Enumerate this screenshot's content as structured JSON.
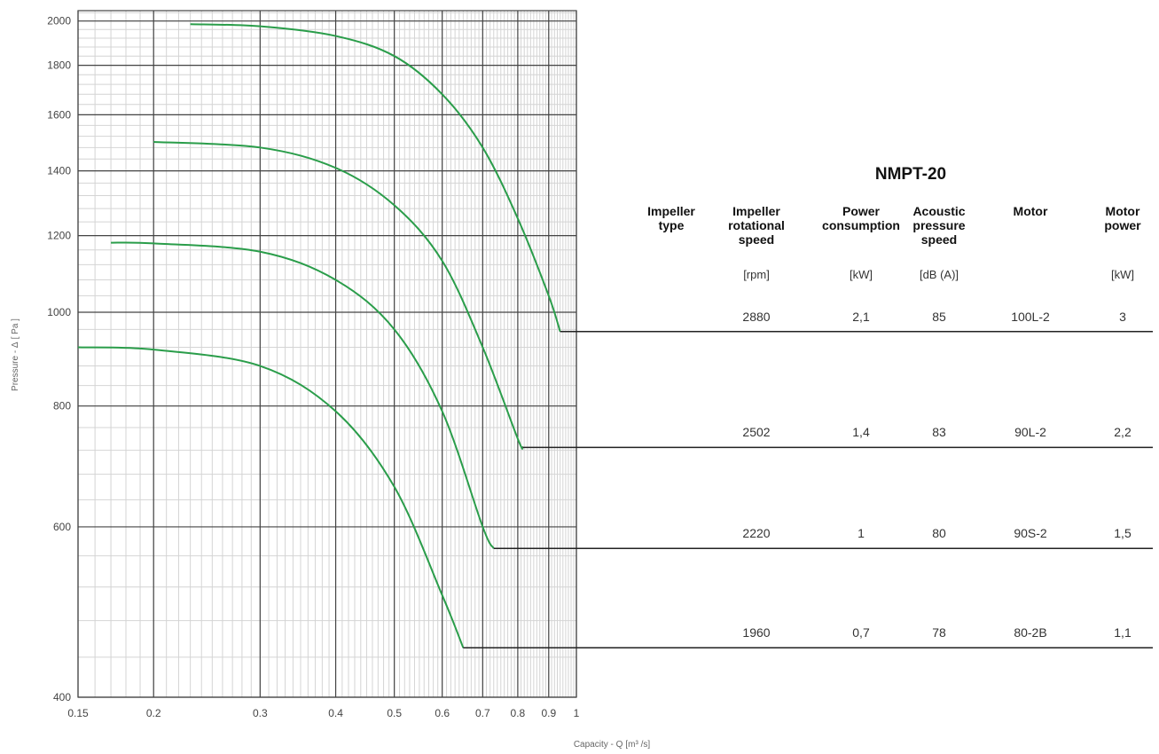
{
  "chart_data": {
    "type": "line",
    "title": "NMPT-20",
    "xlabel": "Capacity - Q",
    "xlabel_unit": "[m³ /s]",
    "ylabel": "Pressure - Δ",
    "ylabel_unit": "[ Pa ]",
    "xscale": "log",
    "yscale": "log",
    "xlim": [
      0.15,
      1
    ],
    "ylim": [
      400,
      2050
    ],
    "xticks": [
      "0.15",
      "0.2",
      "0.3",
      "0.4",
      "0.5",
      "0.6",
      "0.7",
      "0.8",
      "0.9",
      "1"
    ],
    "yticks": [
      "400",
      "600",
      "800",
      "1000",
      "1200",
      "1400",
      "1600",
      "1800",
      "2000"
    ],
    "grid": true,
    "line_color": "#2a9d4a",
    "series": [
      {
        "name": "2880",
        "x": [
          0.23,
          0.3,
          0.4,
          0.5,
          0.6,
          0.7,
          0.8,
          0.9,
          0.94
        ],
        "y": [
          1985,
          1975,
          1930,
          1840,
          1680,
          1480,
          1250,
          1040,
          955
        ]
      },
      {
        "name": "2502",
        "x": [
          0.2,
          0.3,
          0.4,
          0.5,
          0.6,
          0.7,
          0.8,
          0.815
        ],
        "y": [
          1500,
          1480,
          1410,
          1290,
          1130,
          920,
          740,
          725
        ]
      },
      {
        "name": "2220",
        "x": [
          0.17,
          0.2,
          0.3,
          0.4,
          0.5,
          0.6,
          0.7,
          0.73
        ],
        "y": [
          1180,
          1178,
          1155,
          1080,
          960,
          790,
          600,
          570
        ]
      },
      {
        "name": "1960",
        "x": [
          0.15,
          0.2,
          0.3,
          0.4,
          0.5,
          0.6,
          0.65
        ],
        "y": [
          920,
          915,
          880,
          790,
          660,
          510,
          450
        ]
      }
    ]
  },
  "table": {
    "headers": [
      {
        "lines": [
          "Impeller",
          "type"
        ],
        "unit": ""
      },
      {
        "lines": [
          "Impeller",
          "rotational",
          "speed"
        ],
        "unit": "[rpm]"
      },
      {
        "lines": [
          "Power",
          "consumption"
        ],
        "unit": "[kW]"
      },
      {
        "lines": [
          "Acoustic",
          "pressure",
          "speed"
        ],
        "unit": "[dB (A)]"
      },
      {
        "lines": [
          "Motor"
        ],
        "unit": ""
      },
      {
        "lines": [
          "Motor",
          "power"
        ],
        "unit": "[kW]"
      }
    ],
    "rows": [
      {
        "speed": "2880",
        "power": "2,1",
        "acoustic": "85",
        "motor": "100L-2",
        "motor_power": "3"
      },
      {
        "speed": "2502",
        "power": "1,4",
        "acoustic": "83",
        "motor": "90L-2",
        "motor_power": "2,2"
      },
      {
        "speed": "2220",
        "power": "1",
        "acoustic": "80",
        "motor": "90S-2",
        "motor_power": "1,5"
      },
      {
        "speed": "1960",
        "power": "0,7",
        "acoustic": "78",
        "motor": "80-2B",
        "motor_power": "1,1"
      }
    ]
  }
}
